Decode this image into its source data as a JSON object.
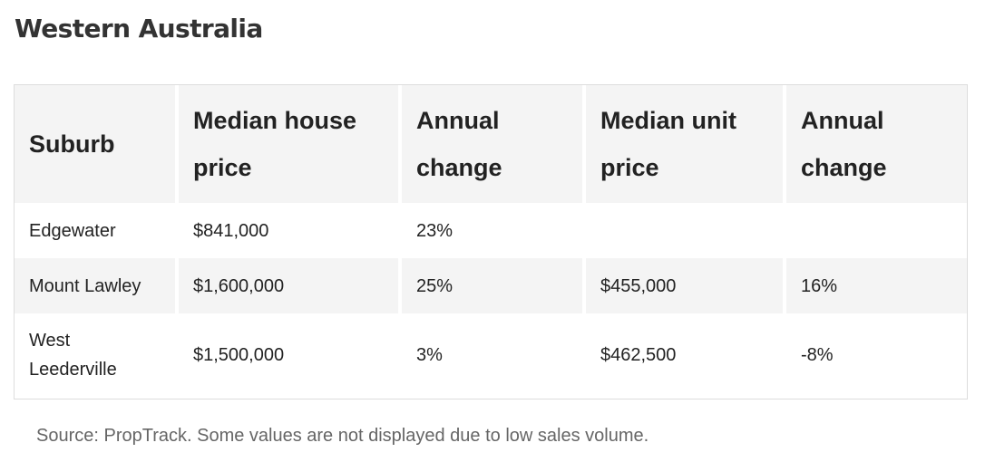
{
  "title": "Western Australia",
  "table": {
    "headers": [
      "Suburb",
      "Median house price",
      "Annual change",
      "Median unit price",
      "Annual change"
    ],
    "rows": [
      [
        "Edgewater",
        "$841,000",
        "23%",
        "",
        ""
      ],
      [
        "Mount Lawley",
        "$1,600,000",
        "25%",
        "$455,000",
        "16%"
      ],
      [
        "West Leederville",
        "$1,500,000",
        "3%",
        "$462,500",
        "-8%"
      ]
    ]
  },
  "source": "Source: PropTrack. Some values are not displayed due to low sales volume."
}
